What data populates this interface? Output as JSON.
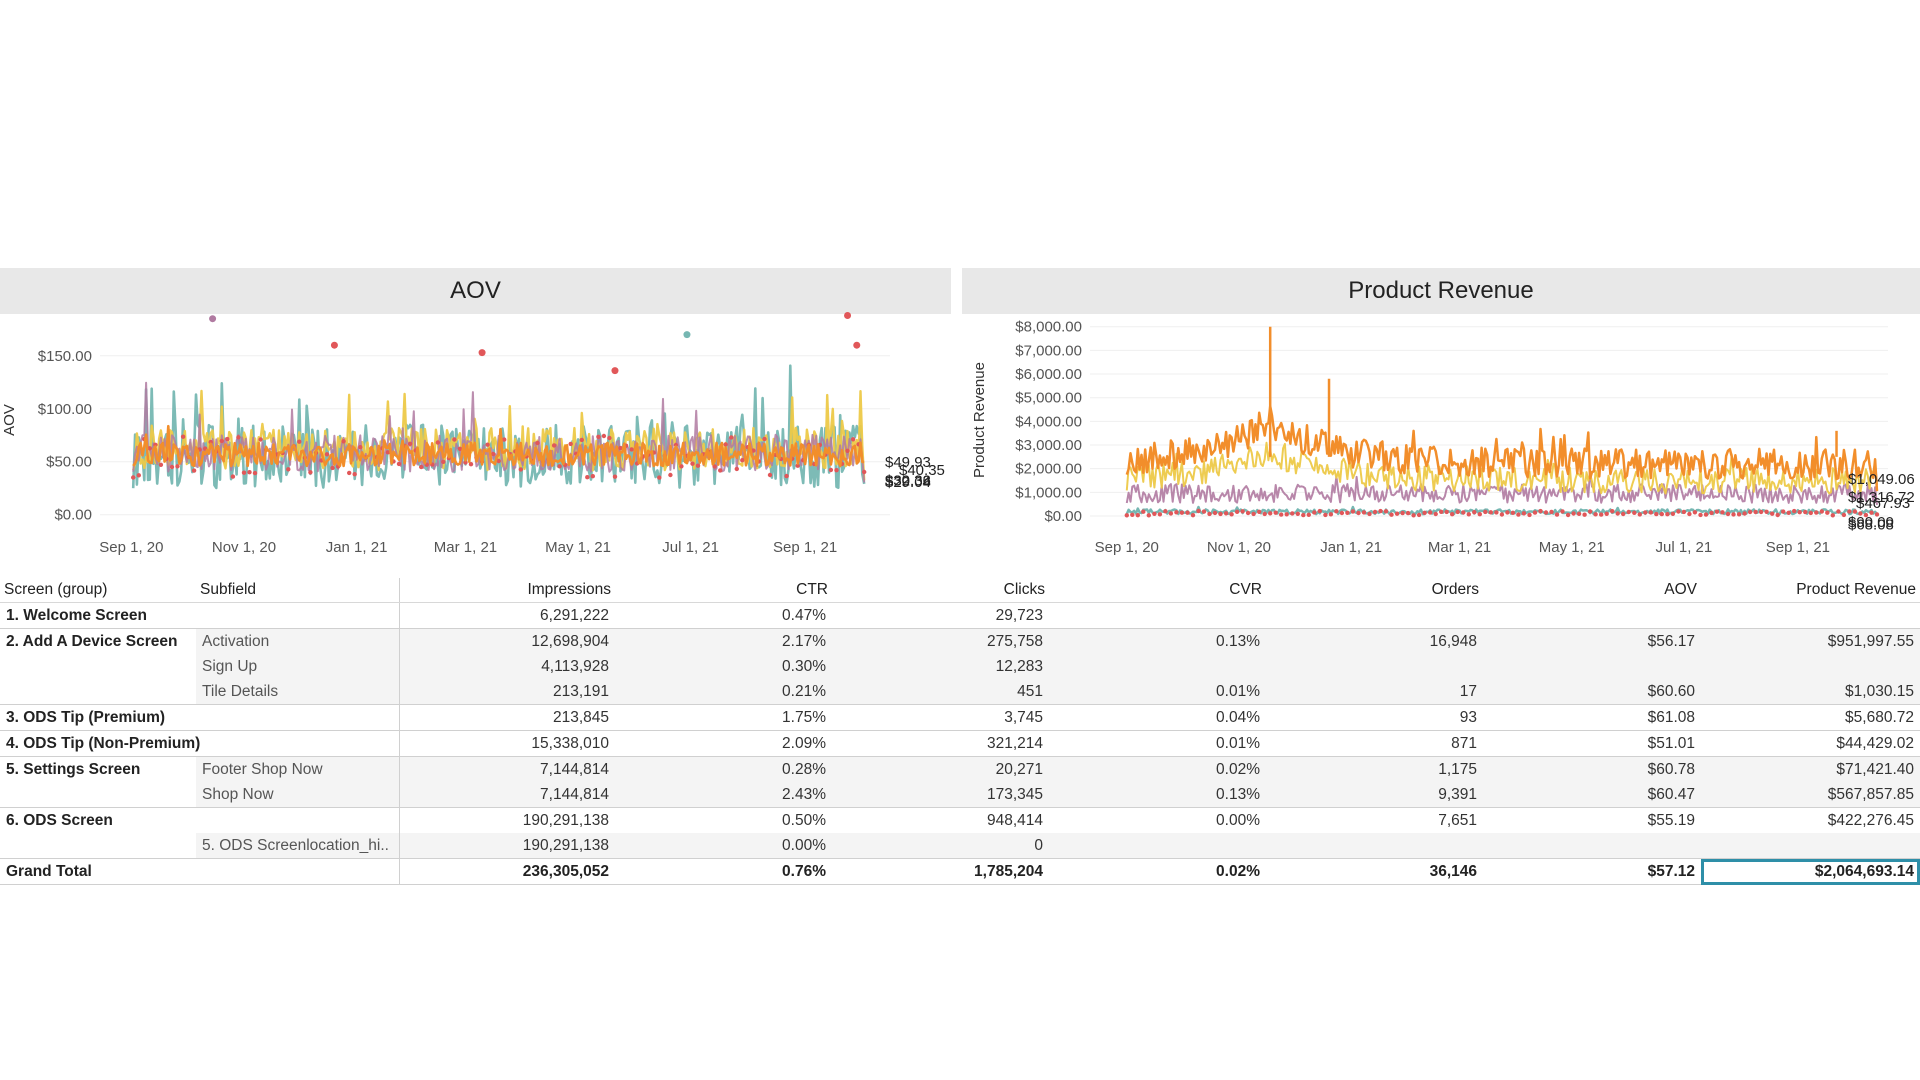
{
  "chart_data": [
    {
      "type": "line",
      "title": "AOV",
      "ylabel": "AOV",
      "y_ticks": [
        "$0.00",
        "$50.00",
        "$100.00",
        "$150.00"
      ],
      "y_values": [
        0,
        50,
        100,
        150
      ],
      "ylim": [
        -5,
        180
      ],
      "x_ticks": [
        "Sep 1, 20",
        "Nov 1, 20",
        "Jan 1, 21",
        "Mar 1, 21",
        "May 1, 21",
        "Jul 1, 21",
        "Sep 1, 21"
      ],
      "x_range": [
        "2020-08-15",
        "2021-10-17"
      ],
      "series_colors": [
        "#f28e2b",
        "#edc948",
        "#76b7b2",
        "#b07aa1",
        "#e15759"
      ],
      "end_labels": [
        "$49.93",
        "$32.32",
        "$40.35",
        "$30.36",
        "$29.04"
      ],
      "end_label_values": [
        49.93,
        32.32,
        40.35,
        30.36,
        29.04
      ],
      "notable_points": [
        {
          "date": "2020-10-15",
          "value": 185,
          "series": 3
        },
        {
          "date": "2020-12-20",
          "value": 160,
          "series": 4
        },
        {
          "date": "2021-03-10",
          "value": 153,
          "series": 4
        },
        {
          "date": "2021-06-29",
          "value": 170,
          "series": 2
        },
        {
          "date": "2021-09-24",
          "value": 188,
          "series": 4
        },
        {
          "date": "2021-09-29",
          "value": 160,
          "series": 4
        },
        {
          "date": "2021-05-21",
          "value": 136,
          "series": 4
        }
      ]
    },
    {
      "type": "line",
      "title": "Product Revenue",
      "ylabel": "Product Revenue",
      "y_ticks": [
        "$0.00",
        "$1,000.00",
        "$2,000.00",
        "$3,000.00",
        "$4,000.00",
        "$5,000.00",
        "$6,000.00",
        "$7,000.00",
        "$8,000.00"
      ],
      "y_values": [
        0,
        1000,
        2000,
        3000,
        4000,
        5000,
        6000,
        7000,
        8000
      ],
      "ylim": [
        0,
        8200
      ],
      "x_ticks": [
        "Sep 1, 20",
        "Nov 1, 20",
        "Jan 1, 21",
        "Mar 1, 21",
        "May 1, 21",
        "Jul 1, 21",
        "Sep 1, 21"
      ],
      "x_range": [
        "2020-08-12",
        "2021-10-20"
      ],
      "series_colors": [
        "#f28e2b",
        "#edc948",
        "#b07aa1",
        "#76b7b2",
        "#e15759"
      ],
      "end_labels": [
        "$1,049.06",
        "$1,316.72",
        "$467.93",
        "$90.00",
        "$68.08"
      ],
      "end_label_values": [
        1049.06,
        1316.72,
        467.93,
        90.0,
        68.08
      ],
      "notable_points": [
        {
          "date": "2020-11-18",
          "value": 8000,
          "series": 0
        },
        {
          "date": "2020-12-20",
          "value": 5800,
          "series": 0
        },
        {
          "date": "2021-09-22",
          "value": 3600,
          "series": 0
        }
      ]
    }
  ],
  "table": {
    "headers": [
      "Screen (group)",
      "Subfield",
      "Impressions",
      "CTR",
      "Clicks",
      "CVR",
      "Orders",
      "AOV",
      "Product Revenue"
    ],
    "rows": [
      {
        "group": "1. Welcome Screen",
        "sub": "",
        "imp": "6,291,222",
        "ctr": "0.47%",
        "clicks": "29,723",
        "cvr": "",
        "orders": "",
        "aov": "",
        "rev": ""
      },
      {
        "group": "2. Add A Device Screen",
        "sub": "Activation",
        "imp": "12,698,904",
        "ctr": "2.17%",
        "clicks": "275,758",
        "cvr": "0.13%",
        "orders": "16,948",
        "aov": "$56.17",
        "rev": "$951,997.55"
      },
      {
        "group": "",
        "sub": "Sign Up",
        "imp": "4,113,928",
        "ctr": "0.30%",
        "clicks": "12,283",
        "cvr": "",
        "orders": "",
        "aov": "",
        "rev": ""
      },
      {
        "group": "",
        "sub": "Tile Details",
        "imp": "213,191",
        "ctr": "0.21%",
        "clicks": "451",
        "cvr": "0.01%",
        "orders": "17",
        "aov": "$60.60",
        "rev": "$1,030.15"
      },
      {
        "group": "3. ODS Tip (Premium)",
        "sub": "",
        "imp": "213,845",
        "ctr": "1.75%",
        "clicks": "3,745",
        "cvr": "0.04%",
        "orders": "93",
        "aov": "$61.08",
        "rev": "$5,680.72"
      },
      {
        "group": "4. ODS Tip (Non-Premium)",
        "sub": "",
        "imp": "15,338,010",
        "ctr": "2.09%",
        "clicks": "321,214",
        "cvr": "0.01%",
        "orders": "871",
        "aov": "$51.01",
        "rev": "$44,429.02"
      },
      {
        "group": "5. Settings Screen",
        "sub": "Footer Shop Now",
        "imp": "7,144,814",
        "ctr": "0.28%",
        "clicks": "20,271",
        "cvr": "0.02%",
        "orders": "1,175",
        "aov": "$60.78",
        "rev": "$71,421.40"
      },
      {
        "group": "",
        "sub": "Shop Now",
        "imp": "7,144,814",
        "ctr": "2.43%",
        "clicks": "173,345",
        "cvr": "0.13%",
        "orders": "9,391",
        "aov": "$60.47",
        "rev": "$567,857.85"
      },
      {
        "group": "6. ODS Screen",
        "sub": "",
        "imp": "190,291,138",
        "ctr": "0.50%",
        "clicks": "948,414",
        "cvr": "0.00%",
        "orders": "7,651",
        "aov": "$55.19",
        "rev": "$422,276.45"
      },
      {
        "group": "",
        "sub": "5. ODS Screenlocation_hi..",
        "imp": "190,291,138",
        "ctr": "0.00%",
        "clicks": "0",
        "cvr": "",
        "orders": "",
        "aov": "",
        "rev": ""
      }
    ],
    "grand_total": {
      "label": "Grand Total",
      "imp": "236,305,052",
      "ctr": "0.76%",
      "clicks": "1,785,204",
      "cvr": "0.02%",
      "orders": "36,146",
      "aov": "$57.12",
      "rev": "$2,064,693.14"
    }
  }
}
